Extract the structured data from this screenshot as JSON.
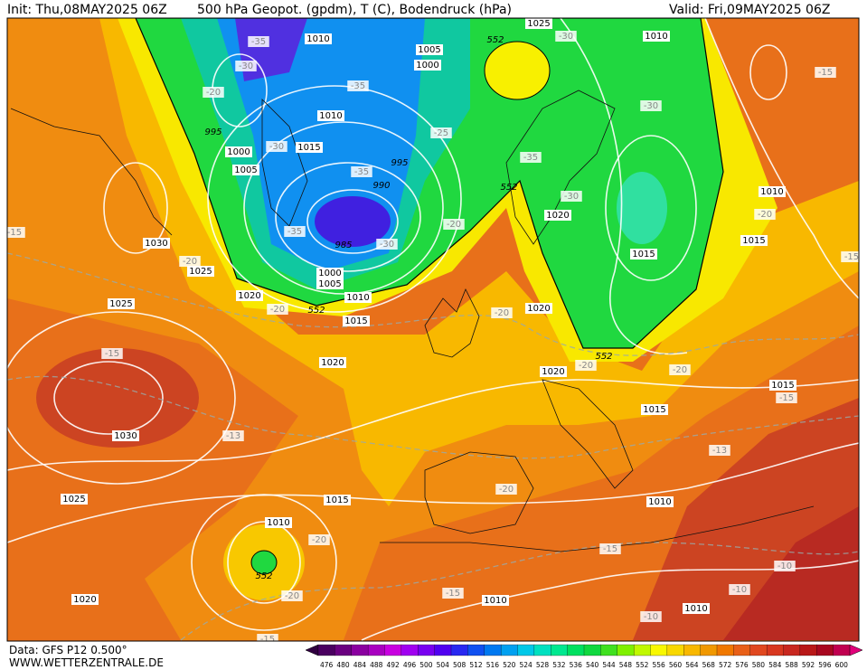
{
  "header": {
    "init": "Init: Thu,08MAY2025 06Z",
    "title": "500 hPa Geopot. (gpdm), T (C), Bodendruck (hPa)",
    "valid": "Valid: Fri,09MAY2025 06Z"
  },
  "footer": {
    "data": "Data: GFS P12 0.500°",
    "site": "WWW.WETTERZENTRALE.DE"
  },
  "colorbar": {
    "labels": [
      476,
      480,
      484,
      488,
      492,
      496,
      500,
      504,
      508,
      512,
      516,
      520,
      524,
      528,
      532,
      536,
      540,
      544,
      548,
      552,
      556,
      560,
      564,
      568,
      572,
      576,
      580,
      584,
      588,
      592,
      596,
      600
    ],
    "colors": [
      "#4a0060",
      "#6a0080",
      "#8a00a0",
      "#a800c0",
      "#c800e0",
      "#a000f0",
      "#7800f0",
      "#5000f0",
      "#2828f0",
      "#1050f0",
      "#0078f0",
      "#00a0f0",
      "#00c8e8",
      "#00e0c0",
      "#00e890",
      "#00e060",
      "#10d840",
      "#40e020",
      "#80f000",
      "#c0f800",
      "#f8f800",
      "#f8d800",
      "#f8b800",
      "#f09800",
      "#f07800",
      "#e86018",
      "#e04820",
      "#d83820",
      "#c82820",
      "#b81818",
      "#a80820",
      "#c00050"
    ]
  },
  "map_labels": [
    "1010",
    "1005",
    "1000",
    "1025",
    "552",
    "-30",
    "1010",
    "-35",
    "-30",
    "-20",
    "-35",
    "1010",
    "995",
    "1000",
    "-30",
    "1015",
    "1005",
    "-25",
    "995",
    "-35",
    "990",
    "552",
    "-35",
    "-30",
    "1020",
    "-20",
    "-35",
    "985",
    "-30",
    "1030",
    "-20",
    "1025",
    "-15",
    "1000",
    "1005",
    "1010",
    "1020",
    "-20",
    "552",
    "1015",
    "1025",
    "-20",
    "1020",
    "-15",
    "1020",
    "1020",
    "-20",
    "552",
    "-30",
    "-15",
    "1010",
    "-20",
    "1015",
    "1015",
    "-15",
    "-20",
    "1015",
    "-15",
    "1015",
    "1030",
    "-13",
    "-13",
    "-20",
    "1025",
    "1015",
    "1010",
    "1010",
    "-20",
    "552",
    "-15",
    "-10",
    "-20",
    "-15",
    "-10",
    "1010",
    "1020",
    "1010",
    "-10",
    "-15"
  ]
}
